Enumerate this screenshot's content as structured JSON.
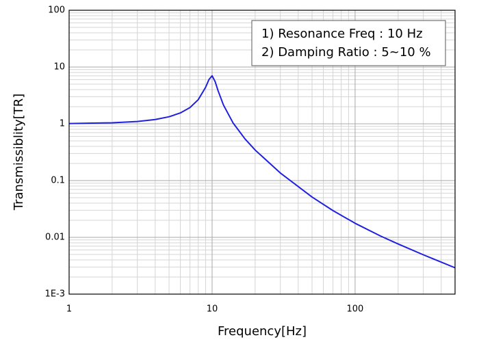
{
  "chart_data": {
    "type": "line",
    "xlabel": "Frequency[Hz]",
    "ylabel": "Transmissiblity[TR]",
    "annotations": [
      "1) Resonance Freq : 10 Hz",
      "2) Damping Ratio : 5~10 %"
    ],
    "xscale": "log",
    "yscale": "log",
    "grid": true,
    "xlim": [
      1,
      500
    ],
    "ylim": [
      0.001,
      100
    ],
    "xticks": [
      1,
      10,
      100
    ],
    "yticks": [
      {
        "value": 0.001,
        "label": "1E-3"
      },
      0.01,
      0.1,
      1,
      10,
      100
    ],
    "xminorticks": [
      2,
      3,
      4,
      5,
      6,
      7,
      8,
      9,
      20,
      30,
      40,
      50,
      60,
      70,
      80,
      90,
      200,
      300,
      400
    ],
    "yminorticks": [
      0.002,
      0.003,
      0.004,
      0.005,
      0.006,
      0.007,
      0.008,
      0.009,
      0.02,
      0.03,
      0.04,
      0.05,
      0.06,
      0.07,
      0.08,
      0.09,
      0.2,
      0.3,
      0.4,
      0.5,
      0.6,
      0.7,
      0.8,
      0.9,
      2,
      3,
      4,
      5,
      6,
      7,
      8,
      9,
      20,
      30,
      40,
      50,
      60,
      70,
      80,
      90
    ],
    "x": [
      1,
      2,
      3,
      4,
      5,
      6,
      7,
      8,
      9,
      9.5,
      10,
      10.5,
      11,
      12,
      14,
      17,
      20,
      30,
      50,
      70,
      100,
      150,
      200,
      300,
      400,
      500
    ],
    "series": [
      {
        "color": "#1f1fe0",
        "values": [
          1.01,
          1.042,
          1.099,
          1.19,
          1.331,
          1.554,
          1.933,
          2.663,
          4.384,
          6.008,
          7.016,
          5.537,
          3.849,
          2.147,
          1.04,
          0.54,
          0.345,
          0.136,
          0.0513,
          0.0296,
          0.0177,
          0.0106,
          0.00764,
          0.00493,
          0.00366,
          0.00291
        ]
      }
    ]
  }
}
